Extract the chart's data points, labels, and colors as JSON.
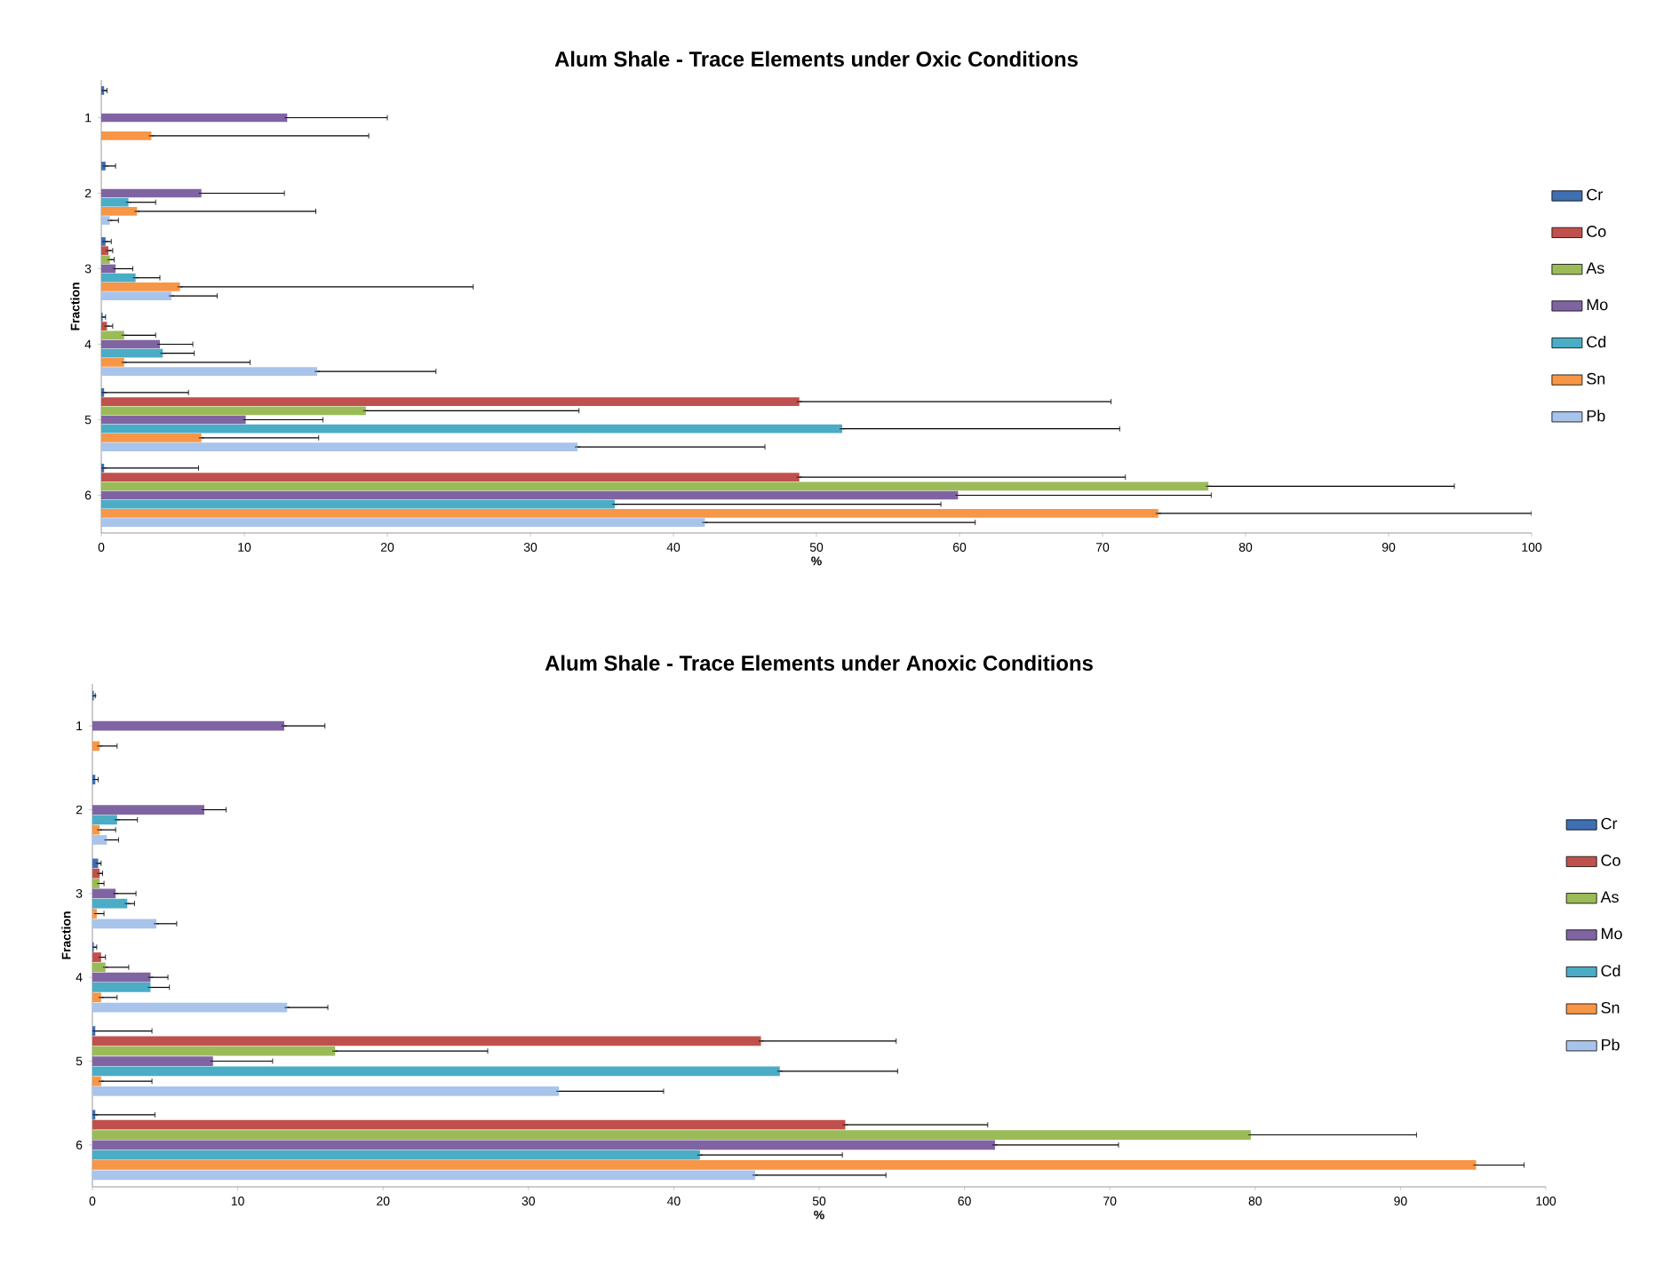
{
  "chart_data": [
    {
      "type": "bar",
      "orientation": "horizontal",
      "title": "Alum Shale - Trace Elements under Oxic Conditions",
      "xlabel": "%",
      "ylabel": "Fraction",
      "categories": [
        "1",
        "2",
        "3",
        "4",
        "5",
        "6"
      ],
      "xlim": [
        0,
        100
      ],
      "xticks": [
        0,
        10,
        20,
        30,
        40,
        50,
        60,
        70,
        80,
        90,
        100
      ],
      "legend": "right",
      "grid": false,
      "series": [
        {
          "name": "Cr",
          "color": "#3f6fb0",
          "values": [
            0.2,
            0.3,
            0.3,
            0.1,
            0.2,
            0.2
          ],
          "errors": [
            [
              0.2,
              0.4
            ],
            [
              0.3,
              1.0
            ],
            [
              0.3,
              0.7
            ],
            [
              0.1,
              0.3
            ],
            [
              0.2,
              6.1
            ],
            [
              0.2,
              6.8
            ]
          ]
        },
        {
          "name": "Co",
          "color": "#c0504d",
          "values": [
            0,
            0,
            0.5,
            0.4,
            48.8,
            48.8
          ],
          "errors": [
            null,
            null,
            [
              0.5,
              0.8
            ],
            [
              0.4,
              0.8
            ],
            [
              48.8,
              70.6
            ],
            [
              48.8,
              71.6
            ]
          ]
        },
        {
          "name": "As",
          "color": "#9bbb59",
          "values": [
            0,
            0,
            0.6,
            1.6,
            18.5,
            77.4
          ],
          "errors": [
            null,
            null,
            [
              0.6,
              0.9
            ],
            [
              1.6,
              3.8
            ],
            [
              18.5,
              33.4
            ],
            [
              77.4,
              94.6
            ]
          ]
        },
        {
          "name": "Mo",
          "color": "#8064a2",
          "values": [
            13.0,
            7.0,
            1.0,
            4.1,
            10.1,
            59.9
          ],
          "errors": [
            [
              13.0,
              20.0
            ],
            [
              7.0,
              12.8
            ],
            [
              1.0,
              2.2
            ],
            [
              4.1,
              6.4
            ],
            [
              10.1,
              15.5
            ],
            [
              59.9,
              77.6
            ]
          ]
        },
        {
          "name": "Cd",
          "color": "#4bacc6",
          "values": [
            0,
            1.9,
            2.4,
            4.3,
            51.8,
            35.9
          ],
          "errors": [
            null,
            [
              1.9,
              3.8
            ],
            [
              2.4,
              4.1
            ],
            [
              4.3,
              6.5
            ],
            [
              51.8,
              71.2
            ],
            [
              35.9,
              58.7
            ]
          ]
        },
        {
          "name": "Sn",
          "color": "#f79646",
          "values": [
            3.5,
            2.5,
            5.5,
            1.6,
            7.0,
            73.9
          ],
          "errors": [
            [
              3.5,
              18.7
            ],
            [
              2.5,
              15.0
            ],
            [
              5.5,
              26.0
            ],
            [
              1.6,
              10.4
            ],
            [
              7.0,
              15.2
            ],
            [
              73.9,
              100
            ]
          ]
        },
        {
          "name": "Pb",
          "color": "#a9c4eb",
          "values": [
            0,
            0.6,
            4.9,
            15.1,
            33.3,
            42.2
          ],
          "errors": [
            null,
            [
              0.6,
              1.2
            ],
            [
              4.9,
              8.1
            ],
            [
              15.1,
              23.4
            ],
            [
              33.3,
              46.4
            ],
            [
              42.2,
              61.1
            ]
          ]
        }
      ]
    },
    {
      "type": "bar",
      "orientation": "horizontal",
      "title": "Alum Shale - Trace Elements under Anoxic Conditions",
      "xlabel": "%",
      "ylabel": "Fraction",
      "categories": [
        "1",
        "2",
        "3",
        "4",
        "5",
        "6"
      ],
      "xlim": [
        0,
        100
      ],
      "xticks": [
        0,
        10,
        20,
        30,
        40,
        50,
        60,
        70,
        80,
        90,
        100
      ],
      "legend": "right",
      "grid": false,
      "series": [
        {
          "name": "Cr",
          "color": "#3f6fb0",
          "values": [
            0.1,
            0.2,
            0.4,
            0.1,
            0.2,
            0.2
          ],
          "errors": [
            [
              0.1,
              0.2
            ],
            [
              0.2,
              0.4
            ],
            [
              0.4,
              0.6
            ],
            [
              0.1,
              0.3
            ],
            [
              0.2,
              4.1
            ],
            [
              0.2,
              4.3
            ]
          ]
        },
        {
          "name": "Co",
          "color": "#c0504d",
          "values": [
            0,
            0,
            0.5,
            0.6,
            46.0,
            51.8
          ],
          "errors": [
            null,
            null,
            [
              0.5,
              0.7
            ],
            [
              0.6,
              0.9
            ],
            [
              46.0,
              55.3
            ],
            [
              51.8,
              61.6
            ]
          ]
        },
        {
          "name": "As",
          "color": "#9bbb59",
          "values": [
            0,
            0,
            0.5,
            0.9,
            16.7,
            79.7
          ],
          "errors": [
            null,
            null,
            [
              0.5,
              0.8
            ],
            [
              0.9,
              2.5
            ],
            [
              16.7,
              27.2
            ],
            [
              79.7,
              91.1
            ]
          ]
        },
        {
          "name": "Mo",
          "color": "#8064a2",
          "values": [
            13.2,
            7.7,
            1.6,
            4.0,
            8.3,
            62.1
          ],
          "errors": [
            [
              13.2,
              16.0
            ],
            [
              7.7,
              9.2
            ],
            [
              1.6,
              3.0
            ],
            [
              4.0,
              5.2
            ],
            [
              8.3,
              12.4
            ],
            [
              62.1,
              70.6
            ]
          ]
        },
        {
          "name": "Cd",
          "color": "#4bacc6",
          "values": [
            0,
            1.7,
            2.4,
            4.0,
            47.3,
            41.8
          ],
          "errors": [
            null,
            [
              1.7,
              3.1
            ],
            [
              2.4,
              2.9
            ],
            [
              4.0,
              5.3
            ],
            [
              47.3,
              55.4
            ],
            [
              41.8,
              51.6
            ]
          ]
        },
        {
          "name": "Sn",
          "color": "#f79646",
          "values": [
            0.5,
            0.5,
            0.3,
            0.6,
            0.6,
            95.2
          ],
          "errors": [
            [
              0.5,
              1.7
            ],
            [
              0.5,
              1.6
            ],
            [
              0.3,
              0.8
            ],
            [
              0.6,
              1.7
            ],
            [
              0.6,
              4.1
            ],
            [
              95.2,
              98.5
            ]
          ]
        },
        {
          "name": "Pb",
          "color": "#a9c4eb",
          "values": [
            0,
            1.0,
            4.4,
            13.4,
            32.1,
            45.6
          ],
          "errors": [
            null,
            [
              1.0,
              1.8
            ],
            [
              4.4,
              5.8
            ],
            [
              13.4,
              16.2
            ],
            [
              32.1,
              39.3
            ],
            [
              45.6,
              54.6
            ]
          ]
        }
      ]
    }
  ]
}
